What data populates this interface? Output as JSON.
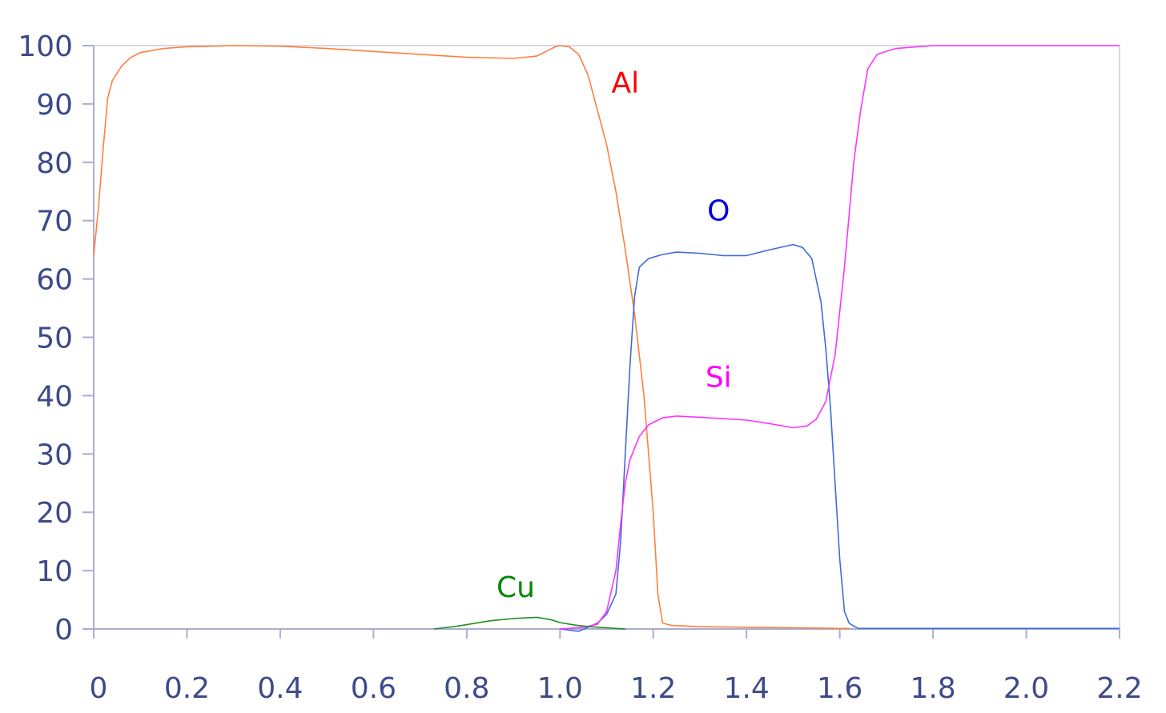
{
  "chart_data": {
    "type": "line",
    "title": "",
    "xlabel": "",
    "ylabel": "",
    "xlim": [
      0,
      2.2
    ],
    "ylim": [
      0,
      100
    ],
    "grid": false,
    "legend": "none",
    "x_ticks": [
      0,
      0.2,
      0.4,
      0.6,
      0.8,
      1.0,
      1.2,
      1.4,
      1.6,
      1.8,
      2.0,
      2.2
    ],
    "x_tick_labels": [
      "0",
      "0.2",
      "0.4",
      "0.6",
      "0.8",
      "1.0",
      "1.2",
      "1.4",
      "1.6",
      "1.8",
      "2.0",
      "2.2"
    ],
    "y_ticks": [
      0,
      10,
      20,
      30,
      40,
      50,
      60,
      70,
      80,
      90,
      100
    ],
    "y_tick_labels": [
      "0",
      "10",
      "20",
      "30",
      "40",
      "50",
      "60",
      "70",
      "80",
      "90",
      "100"
    ],
    "tick_color": "#3d4a8a",
    "axis_color": "#a9aed0",
    "series": [
      {
        "name": "Al",
        "line_color": "#ff7f3f",
        "label_color": "#ff0000",
        "label_pos": [
          1.14,
          92
        ],
        "points": [
          [
            0,
            64
          ],
          [
            0.01,
            72
          ],
          [
            0.02,
            82
          ],
          [
            0.03,
            91
          ],
          [
            0.04,
            94
          ],
          [
            0.06,
            96.5
          ],
          [
            0.08,
            98
          ],
          [
            0.1,
            98.8
          ],
          [
            0.15,
            99.5
          ],
          [
            0.2,
            99.8
          ],
          [
            0.3,
            100
          ],
          [
            0.4,
            99.9
          ],
          [
            0.5,
            99.5
          ],
          [
            0.6,
            99
          ],
          [
            0.7,
            98.5
          ],
          [
            0.8,
            98
          ],
          [
            0.9,
            97.8
          ],
          [
            0.95,
            98.2
          ],
          [
            0.97,
            99
          ],
          [
            0.99,
            99.8
          ],
          [
            1.0,
            100
          ],
          [
            1.02,
            99.8
          ],
          [
            1.04,
            98.5
          ],
          [
            1.06,
            95
          ],
          [
            1.08,
            89
          ],
          [
            1.1,
            83
          ],
          [
            1.12,
            75
          ],
          [
            1.14,
            65
          ],
          [
            1.16,
            54
          ],
          [
            1.18,
            40
          ],
          [
            1.2,
            20
          ],
          [
            1.21,
            6
          ],
          [
            1.22,
            1
          ],
          [
            1.24,
            0.6
          ],
          [
            1.3,
            0.4
          ],
          [
            1.4,
            0.3
          ],
          [
            1.5,
            0.2
          ],
          [
            1.6,
            0.1
          ],
          [
            1.62,
            0.1
          ]
        ]
      },
      {
        "name": "O",
        "line_color": "#3f6bd6",
        "label_color": "#0000dd",
        "label_pos": [
          1.34,
          70
        ],
        "points": [
          [
            1.0,
            0
          ],
          [
            1.04,
            -0.4
          ],
          [
            1.08,
            1
          ],
          [
            1.1,
            2.5
          ],
          [
            1.12,
            6
          ],
          [
            1.13,
            15
          ],
          [
            1.14,
            30
          ],
          [
            1.15,
            45
          ],
          [
            1.16,
            57
          ],
          [
            1.17,
            62
          ],
          [
            1.19,
            63.5
          ],
          [
            1.22,
            64.2
          ],
          [
            1.25,
            64.6
          ],
          [
            1.3,
            64.4
          ],
          [
            1.35,
            64
          ],
          [
            1.4,
            64
          ],
          [
            1.45,
            65
          ],
          [
            1.5,
            65.9
          ],
          [
            1.52,
            65.4
          ],
          [
            1.54,
            63.5
          ],
          [
            1.56,
            56
          ],
          [
            1.57,
            48
          ],
          [
            1.58,
            38
          ],
          [
            1.59,
            25
          ],
          [
            1.6,
            12
          ],
          [
            1.61,
            3
          ],
          [
            1.62,
            1
          ],
          [
            1.63,
            0.5
          ],
          [
            1.64,
            0.1
          ],
          [
            1.8,
            0.1
          ],
          [
            2.0,
            0.1
          ],
          [
            2.2,
            0.1
          ]
        ]
      },
      {
        "name": "Si",
        "line_color": "#ff33ff",
        "label_color": "#ff00ff",
        "label_pos": [
          1.34,
          41.5
        ],
        "points": [
          [
            1.0,
            0
          ],
          [
            1.05,
            0.3
          ],
          [
            1.08,
            0.8
          ],
          [
            1.1,
            3
          ],
          [
            1.12,
            10
          ],
          [
            1.13,
            18
          ],
          [
            1.14,
            25
          ],
          [
            1.15,
            29
          ],
          [
            1.17,
            33
          ],
          [
            1.19,
            35
          ],
          [
            1.22,
            36.2
          ],
          [
            1.25,
            36.5
          ],
          [
            1.3,
            36.3
          ],
          [
            1.4,
            35.8
          ],
          [
            1.45,
            35.2
          ],
          [
            1.5,
            34.5
          ],
          [
            1.53,
            34.8
          ],
          [
            1.55,
            36
          ],
          [
            1.57,
            39
          ],
          [
            1.59,
            47
          ],
          [
            1.61,
            62
          ],
          [
            1.63,
            80
          ],
          [
            1.645,
            89
          ],
          [
            1.66,
            96
          ],
          [
            1.68,
            98.5
          ],
          [
            1.72,
            99.5
          ],
          [
            1.8,
            100
          ],
          [
            2.0,
            100
          ],
          [
            2.2,
            100
          ]
        ]
      },
      {
        "name": "Cu",
        "line_color": "#1f8f1f",
        "label_color": "#008800",
        "label_pos": [
          0.905,
          5.5
        ],
        "points": [
          [
            0.73,
            0
          ],
          [
            0.78,
            0.5
          ],
          [
            0.85,
            1.4
          ],
          [
            0.9,
            1.8
          ],
          [
            0.95,
            2
          ],
          [
            0.98,
            1.6
          ],
          [
            1.0,
            1.1
          ],
          [
            1.03,
            0.7
          ],
          [
            1.06,
            0.4
          ],
          [
            1.1,
            0.2
          ],
          [
            1.14,
            0
          ]
        ]
      }
    ]
  }
}
